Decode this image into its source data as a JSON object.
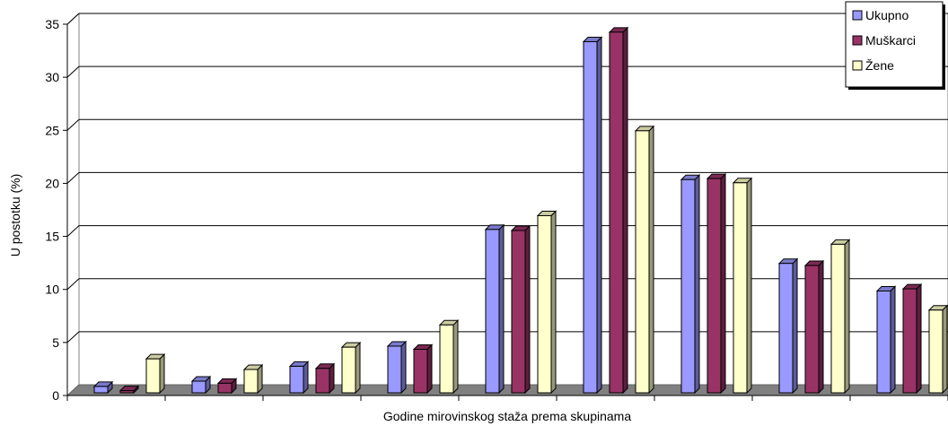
{
  "chart_data": {
    "type": "bar",
    "categories": [
      "",
      "",
      "",
      "",
      "",
      "",
      "",
      "",
      "",
      ""
    ],
    "series": [
      {
        "name": "Ukupno",
        "color": "#9999ff",
        "values": [
          0.6,
          1.1,
          2.5,
          4.4,
          15.4,
          33.1,
          20.1,
          12.2,
          9.6,
          0
        ]
      },
      {
        "name": "Muškarci",
        "color": "#993366",
        "values": [
          0.2,
          0.9,
          2.3,
          4.1,
          15.3,
          34.0,
          20.2,
          12.0,
          9.8,
          0
        ]
      },
      {
        "name": "Žene",
        "color": "#ffffcc",
        "values": [
          3.2,
          2.2,
          4.3,
          6.4,
          16.7,
          24.7,
          19.8,
          14.0,
          7.8,
          0
        ]
      }
    ],
    "xlabel": "Godine mirovinskog staža prema skupinama",
    "ylabel": "U postotku (%)",
    "ylim": [
      0,
      35
    ],
    "yticks": [
      "0",
      "5",
      "10",
      "15",
      "20",
      "25",
      "30",
      "35"
    ],
    "grid": true,
    "legend_position": "top-right"
  }
}
